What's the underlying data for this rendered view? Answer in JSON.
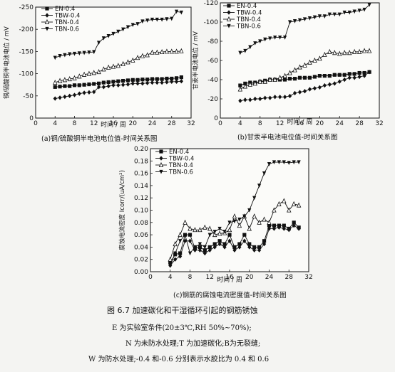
{
  "figure": {
    "title": "图 6.7   加速碳化和干湿循环引起的钢筋锈蚀",
    "notes": [
      "E 为实验室条件(20±3℃,RH 50%~70%);",
      "N 为未防水处理;T 为加速碳化;B为无裂缝;",
      "W 为防水处理;-0.4 和-0.6 分别表示水胶比为 0.4 和 0.6"
    ]
  },
  "captions": {
    "a": "(a)铜/硫酸铜半电池电位值-时间关系图",
    "b": "(b)甘汞半电池电位值-时间关系图",
    "c": "(c)钢筋的腐蚀电流密度值-时间关系图"
  },
  "chart_data": [
    {
      "id": "a",
      "type": "line",
      "xlabel": "时间 / 周",
      "ylabel": "铜/硫酸铜半电池电位 / mV",
      "xlim": [
        0,
        32
      ],
      "ylim": [
        0,
        -250
      ],
      "xticks": [
        0,
        4,
        8,
        12,
        16,
        20,
        24,
        28,
        32
      ],
      "yticks": [
        0,
        -50,
        -100,
        -150,
        -200,
        -250
      ],
      "xtick_labels": [
        "0",
        "4",
        "8",
        "12",
        "16",
        "20",
        "24",
        "28",
        "32"
      ],
      "ytick_labels": [
        "0",
        "-50",
        "-100",
        "-150",
        "-200",
        "-250"
      ],
      "legend_position": "top-left",
      "series": [
        {
          "name": "EN-0.4",
          "marker": "square",
          "x": [
            4,
            5,
            6,
            7,
            8,
            9,
            10,
            11,
            12,
            13,
            14,
            15,
            16,
            17,
            18,
            19,
            20,
            21,
            22,
            23,
            24,
            25,
            26,
            27,
            28,
            29,
            30
          ],
          "y": [
            -70,
            -71,
            -72,
            -72,
            -74,
            -74,
            -75,
            -76,
            -77,
            -78,
            -80,
            -81,
            -82,
            -83,
            -84,
            -85,
            -86,
            -86,
            -87,
            -87,
            -88,
            -88,
            -88,
            -89,
            -89,
            -90,
            -92
          ]
        },
        {
          "name": "TBW-0.4",
          "marker": "diamond",
          "x": [
            4,
            5,
            6,
            7,
            8,
            9,
            10,
            11,
            12,
            13,
            14,
            15,
            16,
            17,
            18,
            19,
            20,
            21,
            22,
            23,
            24,
            25,
            26,
            27,
            28,
            29,
            30
          ],
          "y": [
            -44,
            -46,
            -48,
            -50,
            -52,
            -55,
            -57,
            -58,
            -59,
            -70,
            -70,
            -72,
            -74,
            -74,
            -75,
            -76,
            -78,
            -78,
            -78,
            -79,
            -80,
            -80,
            -80,
            -81,
            -82,
            -82,
            -83
          ]
        },
        {
          "name": "TBN-0.4",
          "marker": "triangle-open",
          "x": [
            4,
            5,
            6,
            7,
            8,
            9,
            10,
            11,
            12,
            13,
            14,
            15,
            16,
            17,
            18,
            19,
            20,
            21,
            22,
            23,
            24,
            25,
            26,
            27,
            28,
            29,
            30
          ],
          "y": [
            -80,
            -84,
            -86,
            -88,
            -90,
            -94,
            -98,
            -100,
            -102,
            -104,
            -110,
            -114,
            -116,
            -118,
            -122,
            -126,
            -130,
            -136,
            -140,
            -142,
            -148,
            -148,
            -149,
            -150,
            -150,
            -150,
            -151
          ]
        },
        {
          "name": "TBN-0.6",
          "marker": "triangle-filled",
          "x": [
            4,
            5,
            6,
            7,
            8,
            9,
            10,
            11,
            12,
            13,
            14,
            15,
            16,
            17,
            18,
            19,
            20,
            21,
            22,
            23,
            24,
            25,
            26,
            27,
            28,
            29,
            30
          ],
          "y": [
            -136,
            -140,
            -142,
            -144,
            -145,
            -146,
            -147,
            -148,
            -149,
            -170,
            -180,
            -185,
            -190,
            -195,
            -200,
            -205,
            -210,
            -212,
            -218,
            -220,
            -222,
            -222,
            -222,
            -223,
            -224,
            -240,
            -238
          ]
        }
      ]
    },
    {
      "id": "b",
      "type": "line",
      "xlabel": "时间 / 周",
      "ylabel": "甘汞半电池电位 / mV",
      "xlim": [
        0,
        32
      ],
      "ylim": [
        0,
        -120
      ],
      "xticks": [
        0,
        4,
        8,
        12,
        16,
        20,
        24,
        28,
        32
      ],
      "yticks": [
        0,
        -20,
        -40,
        -60,
        -80,
        -100,
        -120
      ],
      "xtick_labels": [
        "0",
        "4",
        "8",
        "12",
        "16",
        "20",
        "24",
        "28",
        "32"
      ],
      "ytick_labels": [
        "0",
        "-20",
        "-40",
        "-60",
        "-80",
        "-100",
        "-120"
      ],
      "legend_position": "top-left",
      "series": [
        {
          "name": "EN-0.4",
          "marker": "square",
          "x": [
            4,
            5,
            6,
            7,
            8,
            9,
            10,
            11,
            12,
            13,
            14,
            15,
            16,
            17,
            18,
            19,
            20,
            21,
            22,
            23,
            24,
            25,
            26,
            27,
            28,
            29,
            30
          ],
          "y": [
            -34,
            -36,
            -37,
            -37,
            -38,
            -39,
            -40,
            -40,
            -40,
            -40,
            -41,
            -41,
            -42,
            -42,
            -42,
            -43,
            -44,
            -44,
            -44,
            -45,
            -45,
            -45,
            -46,
            -46,
            -47,
            -47,
            -48
          ]
        },
        {
          "name": "TBW-0.4",
          "marker": "diamond",
          "x": [
            4,
            5,
            6,
            7,
            8,
            9,
            10,
            11,
            12,
            13,
            14,
            15,
            16,
            17,
            18,
            19,
            20,
            21,
            22,
            23,
            24,
            25,
            26,
            27,
            28,
            29,
            30
          ],
          "y": [
            -18,
            -19,
            -19,
            -20,
            -20,
            -21,
            -21,
            -22,
            -22,
            -22,
            -23,
            -26,
            -27,
            -28,
            -30,
            -31,
            -32,
            -34,
            -35,
            -36,
            -38,
            -40,
            -42,
            -42,
            -43,
            -44,
            -48
          ]
        },
        {
          "name": "TBN-0.4",
          "marker": "triangle-open",
          "x": [
            4,
            5,
            6,
            7,
            8,
            9,
            10,
            11,
            12,
            13,
            14,
            15,
            16,
            17,
            18,
            19,
            20,
            21,
            22,
            23,
            24,
            25,
            26,
            27,
            28,
            29,
            30
          ],
          "y": [
            -30,
            -33,
            -35,
            -36,
            -38,
            -38,
            -40,
            -40,
            -42,
            -44,
            -47,
            -50,
            -53,
            -55,
            -58,
            -60,
            -62,
            -66,
            -69,
            -68,
            -67,
            -68,
            -68,
            -69,
            -69,
            -70,
            -70
          ]
        },
        {
          "name": "TBN-0.6",
          "marker": "triangle-filled",
          "x": [
            4,
            5,
            6,
            7,
            8,
            9,
            10,
            11,
            12,
            13,
            14,
            15,
            16,
            17,
            18,
            19,
            20,
            21,
            22,
            23,
            24,
            25,
            26,
            27,
            28,
            29,
            30
          ],
          "y": [
            -68,
            -70,
            -74,
            -78,
            -80,
            -82,
            -83,
            -84,
            -84,
            -84,
            -100,
            -101,
            -102,
            -103,
            -104,
            -105,
            -106,
            -106,
            -108,
            -108,
            -108,
            -110,
            -110,
            -111,
            -112,
            -113,
            -118
          ]
        }
      ]
    },
    {
      "id": "c",
      "type": "line",
      "xlabel": "时间 / 周",
      "ylabel": "腐蚀电流密度 Icorr/(uA/cm²)",
      "xlim": [
        0,
        32
      ],
      "ylim": [
        0,
        0.2
      ],
      "xticks": [
        0,
        4,
        8,
        12,
        16,
        20,
        24,
        28,
        32
      ],
      "yticks": [
        0,
        0.02,
        0.04,
        0.06,
        0.08,
        0.1,
        0.12,
        0.14,
        0.16,
        0.18,
        0.2
      ],
      "xtick_labels": [
        "0",
        "4",
        "8",
        "12",
        "16",
        "20",
        "24",
        "28",
        "32"
      ],
      "ytick_labels": [
        "0.00",
        "0.02",
        "0.04",
        "0.06",
        "0.08",
        "0.10",
        "0.12",
        "0.14",
        "0.16",
        "0.18",
        "0.20"
      ],
      "legend_position": "top-left",
      "series": [
        {
          "name": "EN-0.4",
          "marker": "square",
          "x": [
            4,
            5,
            6,
            7,
            8,
            9,
            10,
            11,
            12,
            13,
            14,
            15,
            16,
            17,
            18,
            19,
            20,
            21,
            22,
            23,
            24,
            25,
            26,
            27,
            28,
            29,
            30
          ],
          "y": [
            0.015,
            0.028,
            0.03,
            0.06,
            0.06,
            0.038,
            0.04,
            0.035,
            0.04,
            0.045,
            0.05,
            0.045,
            0.06,
            0.04,
            0.045,
            0.06,
            0.045,
            0.04,
            0.04,
            0.05,
            0.075,
            0.075,
            0.075,
            0.075,
            0.07,
            0.08,
            0.072
          ]
        },
        {
          "name": "TBW-0.4",
          "marker": "diamond",
          "x": [
            4,
            5,
            6,
            7,
            8,
            9,
            10,
            11,
            12,
            13,
            14,
            15,
            16,
            17,
            18,
            19,
            20,
            21,
            22,
            23,
            24,
            25,
            26,
            27,
            28,
            29,
            30
          ],
          "y": [
            0.01,
            0.02,
            0.025,
            0.05,
            0.05,
            0.035,
            0.035,
            0.03,
            0.035,
            0.04,
            0.045,
            0.04,
            0.05,
            0.035,
            0.04,
            0.05,
            0.04,
            0.035,
            0.035,
            0.045,
            0.07,
            0.07,
            0.072,
            0.07,
            0.068,
            0.075,
            0.07
          ]
        },
        {
          "name": "TBN-0.4",
          "marker": "triangle-open",
          "x": [
            4,
            5,
            6,
            7,
            8,
            9,
            10,
            11,
            12,
            13,
            14,
            15,
            16,
            17,
            18,
            19,
            20,
            21,
            22,
            23,
            24,
            25,
            26,
            27,
            28,
            29,
            30
          ],
          "y": [
            0.02,
            0.045,
            0.06,
            0.08,
            0.07,
            0.068,
            0.068,
            0.072,
            0.07,
            0.06,
            0.062,
            0.063,
            0.068,
            0.09,
            0.075,
            0.09,
            0.07,
            0.09,
            0.08,
            0.085,
            0.08,
            0.1,
            0.11,
            0.115,
            0.1,
            0.11,
            0.108
          ]
        },
        {
          "name": "TBN-0.6",
          "marker": "triangle-filled",
          "x": [
            4,
            5,
            6,
            7,
            8,
            9,
            10,
            11,
            12,
            13,
            14,
            15,
            16,
            17,
            18,
            19,
            20,
            21,
            22,
            23,
            24,
            25,
            26,
            27,
            28,
            29,
            30
          ],
          "y": [
            0.01,
            0.03,
            0.05,
            0.06,
            0.03,
            0.04,
            0.045,
            0.04,
            0.06,
            0.065,
            0.07,
            0.065,
            0.08,
            0.082,
            0.085,
            0.09,
            0.1,
            0.12,
            0.14,
            0.16,
            0.175,
            0.178,
            0.178,
            0.178,
            0.177,
            0.178,
            0.178
          ]
        }
      ]
    }
  ]
}
